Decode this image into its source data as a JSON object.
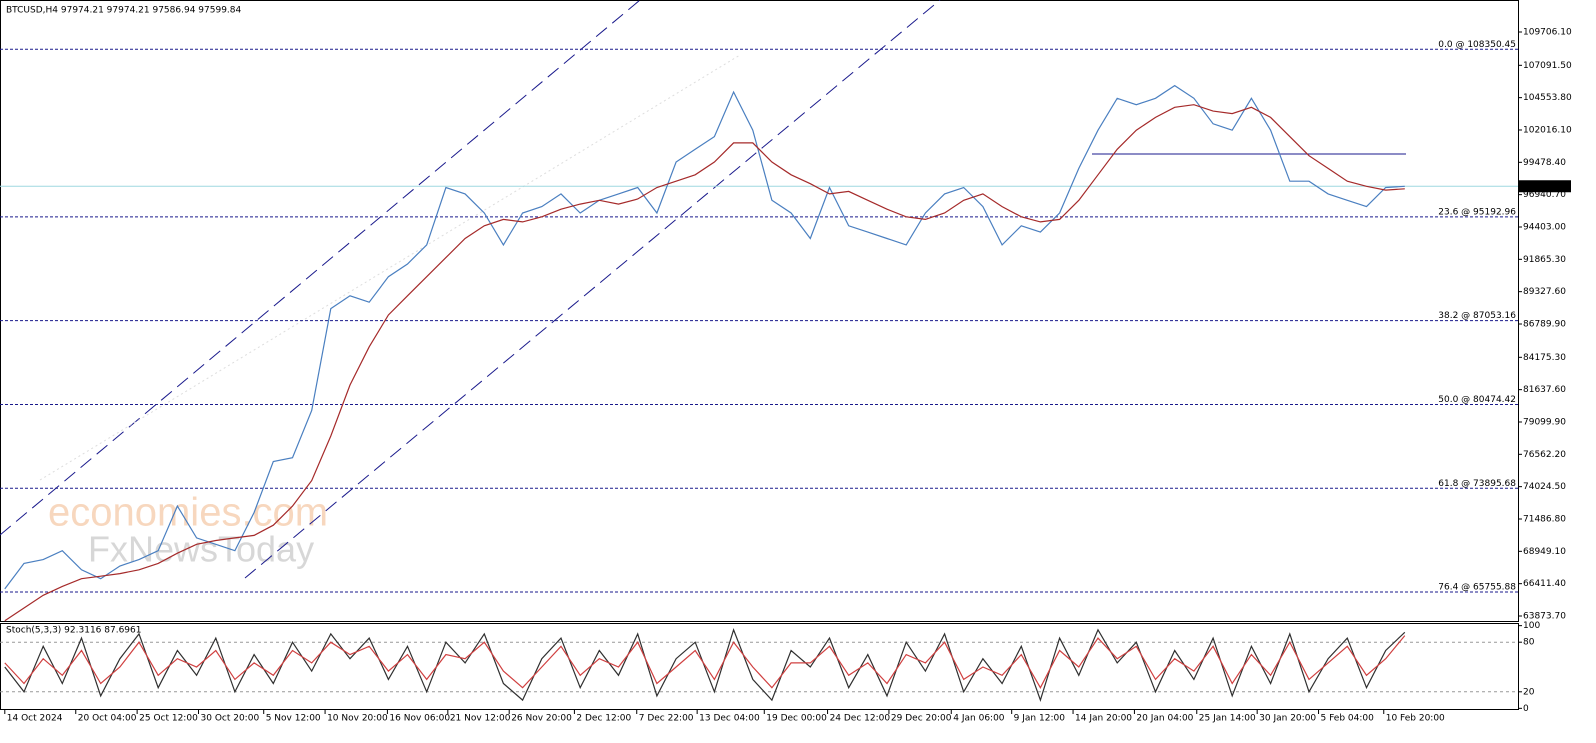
{
  "chart_data": [
    {
      "type": "line",
      "title": "BTCUSD,H4  97974.21 97974.21 97586.94 97599.84",
      "annotations": [
        "economies.com",
        "FxNewsToday"
      ],
      "xlim": [
        -10,
        3156
      ],
      "xticks": [
        {
          "value": 0,
          "label": "14 Oct 2024"
        },
        {
          "value": 148,
          "label": "20 Oct 04:00"
        },
        {
          "value": 276,
          "label": "25 Oct 12:00"
        },
        {
          "value": 404,
          "label": "30 Oct 20:00"
        },
        {
          "value": 540,
          "label": "5 Nov 12:00"
        },
        {
          "value": 668,
          "label": "10 Nov 20:00"
        },
        {
          "value": 798,
          "label": "16 Nov 06:00"
        },
        {
          "value": 924,
          "label": "21 Nov 12:00"
        },
        {
          "value": 1052,
          "label": "26 Nov 20:00"
        },
        {
          "value": 1188,
          "label": "2 Dec 12:00"
        },
        {
          "value": 1318,
          "label": "7 Dec 22:00"
        },
        {
          "value": 1444,
          "label": "13 Dec 04:00"
        },
        {
          "value": 1584,
          "label": "19 Dec 00:00"
        },
        {
          "value": 1716,
          "label": "24 Dec 12:00"
        },
        {
          "value": 1844,
          "label": "29 Dec 20:00"
        },
        {
          "value": 1974,
          "label": "4 Jan 06:00"
        },
        {
          "value": 2100,
          "label": "9 Jan 12:00"
        },
        {
          "value": 2228,
          "label": "14 Jan 20:00"
        },
        {
          "value": 2356,
          "label": "20 Jan 04:00"
        },
        {
          "value": 2486,
          "label": "25 Jan 14:00"
        },
        {
          "value": 2612,
          "label": "30 Jan 20:00"
        },
        {
          "value": 2740,
          "label": "5 Feb 04:00"
        },
        {
          "value": 2876,
          "label": "10 Feb 20:00"
        }
      ],
      "ylim": [
        63403,
        112217
      ],
      "yticks": [
        {
          "value": 109706.1,
          "label": "109706.10"
        },
        {
          "value": 107091.5,
          "label": "107091.50"
        },
        {
          "value": 104553.8,
          "label": "104553.80"
        },
        {
          "value": 102016.1,
          "label": "102016.10"
        },
        {
          "value": 99478.4,
          "label": "99478.40"
        },
        {
          "value": 96940.7,
          "label": "96940.70"
        },
        {
          "value": 94403,
          "label": "94403.00"
        },
        {
          "value": 91865.3,
          "label": "91865.30"
        },
        {
          "value": 89327.6,
          "label": "89327.60"
        },
        {
          "value": 86789.9,
          "label": "86789.90"
        },
        {
          "value": 84175.3,
          "label": "84175.30"
        },
        {
          "value": 81637.6,
          "label": "81637.60"
        },
        {
          "value": 79099.9,
          "label": "79099.90"
        },
        {
          "value": 76562.2,
          "label": "76562.20"
        },
        {
          "value": 74024.5,
          "label": "74024.50"
        },
        {
          "value": 71486.8,
          "label": "71486.80"
        },
        {
          "value": 68949.1,
          "label": "68949.10"
        },
        {
          "value": 66411.4,
          "label": "66411.40"
        },
        {
          "value": 63873.7,
          "label": "63873.70"
        }
      ],
      "levels": [
        {
          "value": 108350.45,
          "label": "0.0 @ 108350.45"
        },
        {
          "value": 95192.96,
          "label": "23.6 @ 95192.96"
        },
        {
          "value": 87053.16,
          "label": "38.2 @ 87053.16"
        },
        {
          "value": 80474.42,
          "label": "50.0 @ 80474.42"
        },
        {
          "value": 73895.68,
          "label": "61.8 @ 73895.68"
        },
        {
          "value": 65755.88,
          "label": "76.4 @ 65755.88"
        }
      ],
      "level_color": "#1a1a8c",
      "current_price": {
        "value": 97599.84,
        "label": "97599.84",
        "color": "#9fd8e0"
      },
      "x": [
        0,
        40,
        80,
        120,
        160,
        200,
        240,
        280,
        320,
        360,
        400,
        440,
        480,
        520,
        560,
        600,
        640,
        680,
        720,
        760,
        800,
        840,
        880,
        920,
        960,
        1000,
        1040,
        1080,
        1120,
        1160,
        1200,
        1240,
        1280,
        1320,
        1360,
        1400,
        1440,
        1480,
        1520,
        1560,
        1600,
        1640,
        1680,
        1720,
        1760,
        1800,
        1840,
        1880,
        1920,
        1960,
        2000,
        2040,
        2080,
        2120,
        2160,
        2200,
        2240,
        2280,
        2320,
        2360,
        2400,
        2440,
        2480,
        2520,
        2560,
        2600,
        2640,
        2680,
        2720,
        2760,
        2800,
        2840,
        2880,
        2920
      ],
      "series": [
        {
          "name": "BTCUSD",
          "color": "#4a7fc0",
          "values": [
            66000,
            68000,
            68300,
            69000,
            67500,
            66800,
            67800,
            68300,
            69000,
            72500,
            70000,
            69500,
            69000,
            72000,
            76000,
            76300,
            80000,
            88000,
            89000,
            88500,
            90500,
            91500,
            93000,
            97500,
            97000,
            95500,
            93000,
            95500,
            96000,
            97000,
            95500,
            96500,
            97000,
            97500,
            95500,
            99500,
            100500,
            101500,
            105000,
            102000,
            96500,
            95500,
            93500,
            97500,
            94500,
            94000,
            93500,
            93000,
            95500,
            97000,
            97500,
            96000,
            93000,
            94500,
            94000,
            95500,
            99000,
            102000,
            104500,
            104000,
            104500,
            105500,
            104500,
            102500,
            102000,
            104500,
            102000,
            98000,
            98000,
            97000,
            96500,
            96000,
            97500,
            97600
          ]
        },
        {
          "name": "MA",
          "color": "#a52a2a",
          "values": [
            63500,
            64500,
            65500,
            66200,
            66800,
            67000,
            67200,
            67500,
            68000,
            68800,
            69500,
            69800,
            70000,
            70200,
            71000,
            72500,
            74500,
            78000,
            82000,
            85000,
            87500,
            89000,
            90500,
            92000,
            93500,
            94500,
            95000,
            94800,
            95200,
            95800,
            96200,
            96500,
            96200,
            96600,
            97500,
            98000,
            98500,
            99500,
            101000,
            101000,
            99500,
            98500,
            97800,
            97000,
            97200,
            96500,
            95800,
            95200,
            95000,
            95500,
            96500,
            97000,
            96000,
            95200,
            94800,
            95000,
            96500,
            98500,
            100500,
            102000,
            103000,
            103800,
            104000,
            103500,
            103300,
            103800,
            103000,
            101500,
            100000,
            99000,
            98000,
            97600,
            97300,
            97400
          ]
        }
      ]
    },
    {
      "type": "line",
      "title": "Stoch(5,3,3) 92.3116 87.6961",
      "xlim": [
        -10,
        3156
      ],
      "ylim": [
        -2,
        102
      ],
      "yticks": [
        0,
        20,
        80,
        100
      ],
      "x": [
        0,
        40,
        80,
        120,
        160,
        200,
        240,
        280,
        320,
        360,
        400,
        440,
        480,
        520,
        560,
        600,
        640,
        680,
        720,
        760,
        800,
        840,
        880,
        920,
        960,
        1000,
        1040,
        1080,
        1120,
        1160,
        1200,
        1240,
        1280,
        1320,
        1360,
        1400,
        1440,
        1480,
        1520,
        1560,
        1600,
        1640,
        1680,
        1720,
        1760,
        1800,
        1840,
        1880,
        1920,
        1960,
        2000,
        2040,
        2080,
        2120,
        2160,
        2200,
        2240,
        2280,
        2320,
        2360,
        2400,
        2440,
        2480,
        2520,
        2560,
        2600,
        2640,
        2680,
        2720,
        2760,
        2800,
        2840,
        2880,
        2920
      ],
      "series": [
        {
          "name": "%K",
          "color": "#303030",
          "values": [
            50,
            20,
            75,
            30,
            85,
            15,
            60,
            90,
            25,
            70,
            40,
            85,
            20,
            65,
            30,
            80,
            45,
            90,
            60,
            85,
            35,
            75,
            20,
            80,
            55,
            90,
            30,
            10,
            60,
            85,
            25,
            70,
            40,
            90,
            15,
            60,
            80,
            20,
            95,
            35,
            10,
            70,
            50,
            85,
            25,
            65,
            15,
            80,
            45,
            90,
            20,
            60,
            30,
            75,
            10,
            85,
            40,
            95,
            55,
            80,
            20,
            70,
            35,
            85,
            15,
            75,
            30,
            90,
            20,
            60,
            85,
            25,
            70,
            92
          ]
        },
        {
          "name": "%D",
          "color": "#d04040",
          "values": [
            55,
            30,
            60,
            40,
            70,
            30,
            50,
            80,
            40,
            60,
            50,
            70,
            35,
            55,
            40,
            70,
            55,
            80,
            65,
            75,
            45,
            65,
            35,
            65,
            60,
            80,
            45,
            25,
            50,
            75,
            40,
            60,
            50,
            80,
            30,
            50,
            70,
            35,
            80,
            50,
            25,
            55,
            55,
            75,
            40,
            55,
            30,
            65,
            55,
            80,
            35,
            50,
            40,
            65,
            25,
            70,
            50,
            85,
            60,
            75,
            35,
            60,
            45,
            75,
            30,
            65,
            40,
            80,
            35,
            55,
            75,
            40,
            60,
            88
          ]
        }
      ]
    }
  ]
}
